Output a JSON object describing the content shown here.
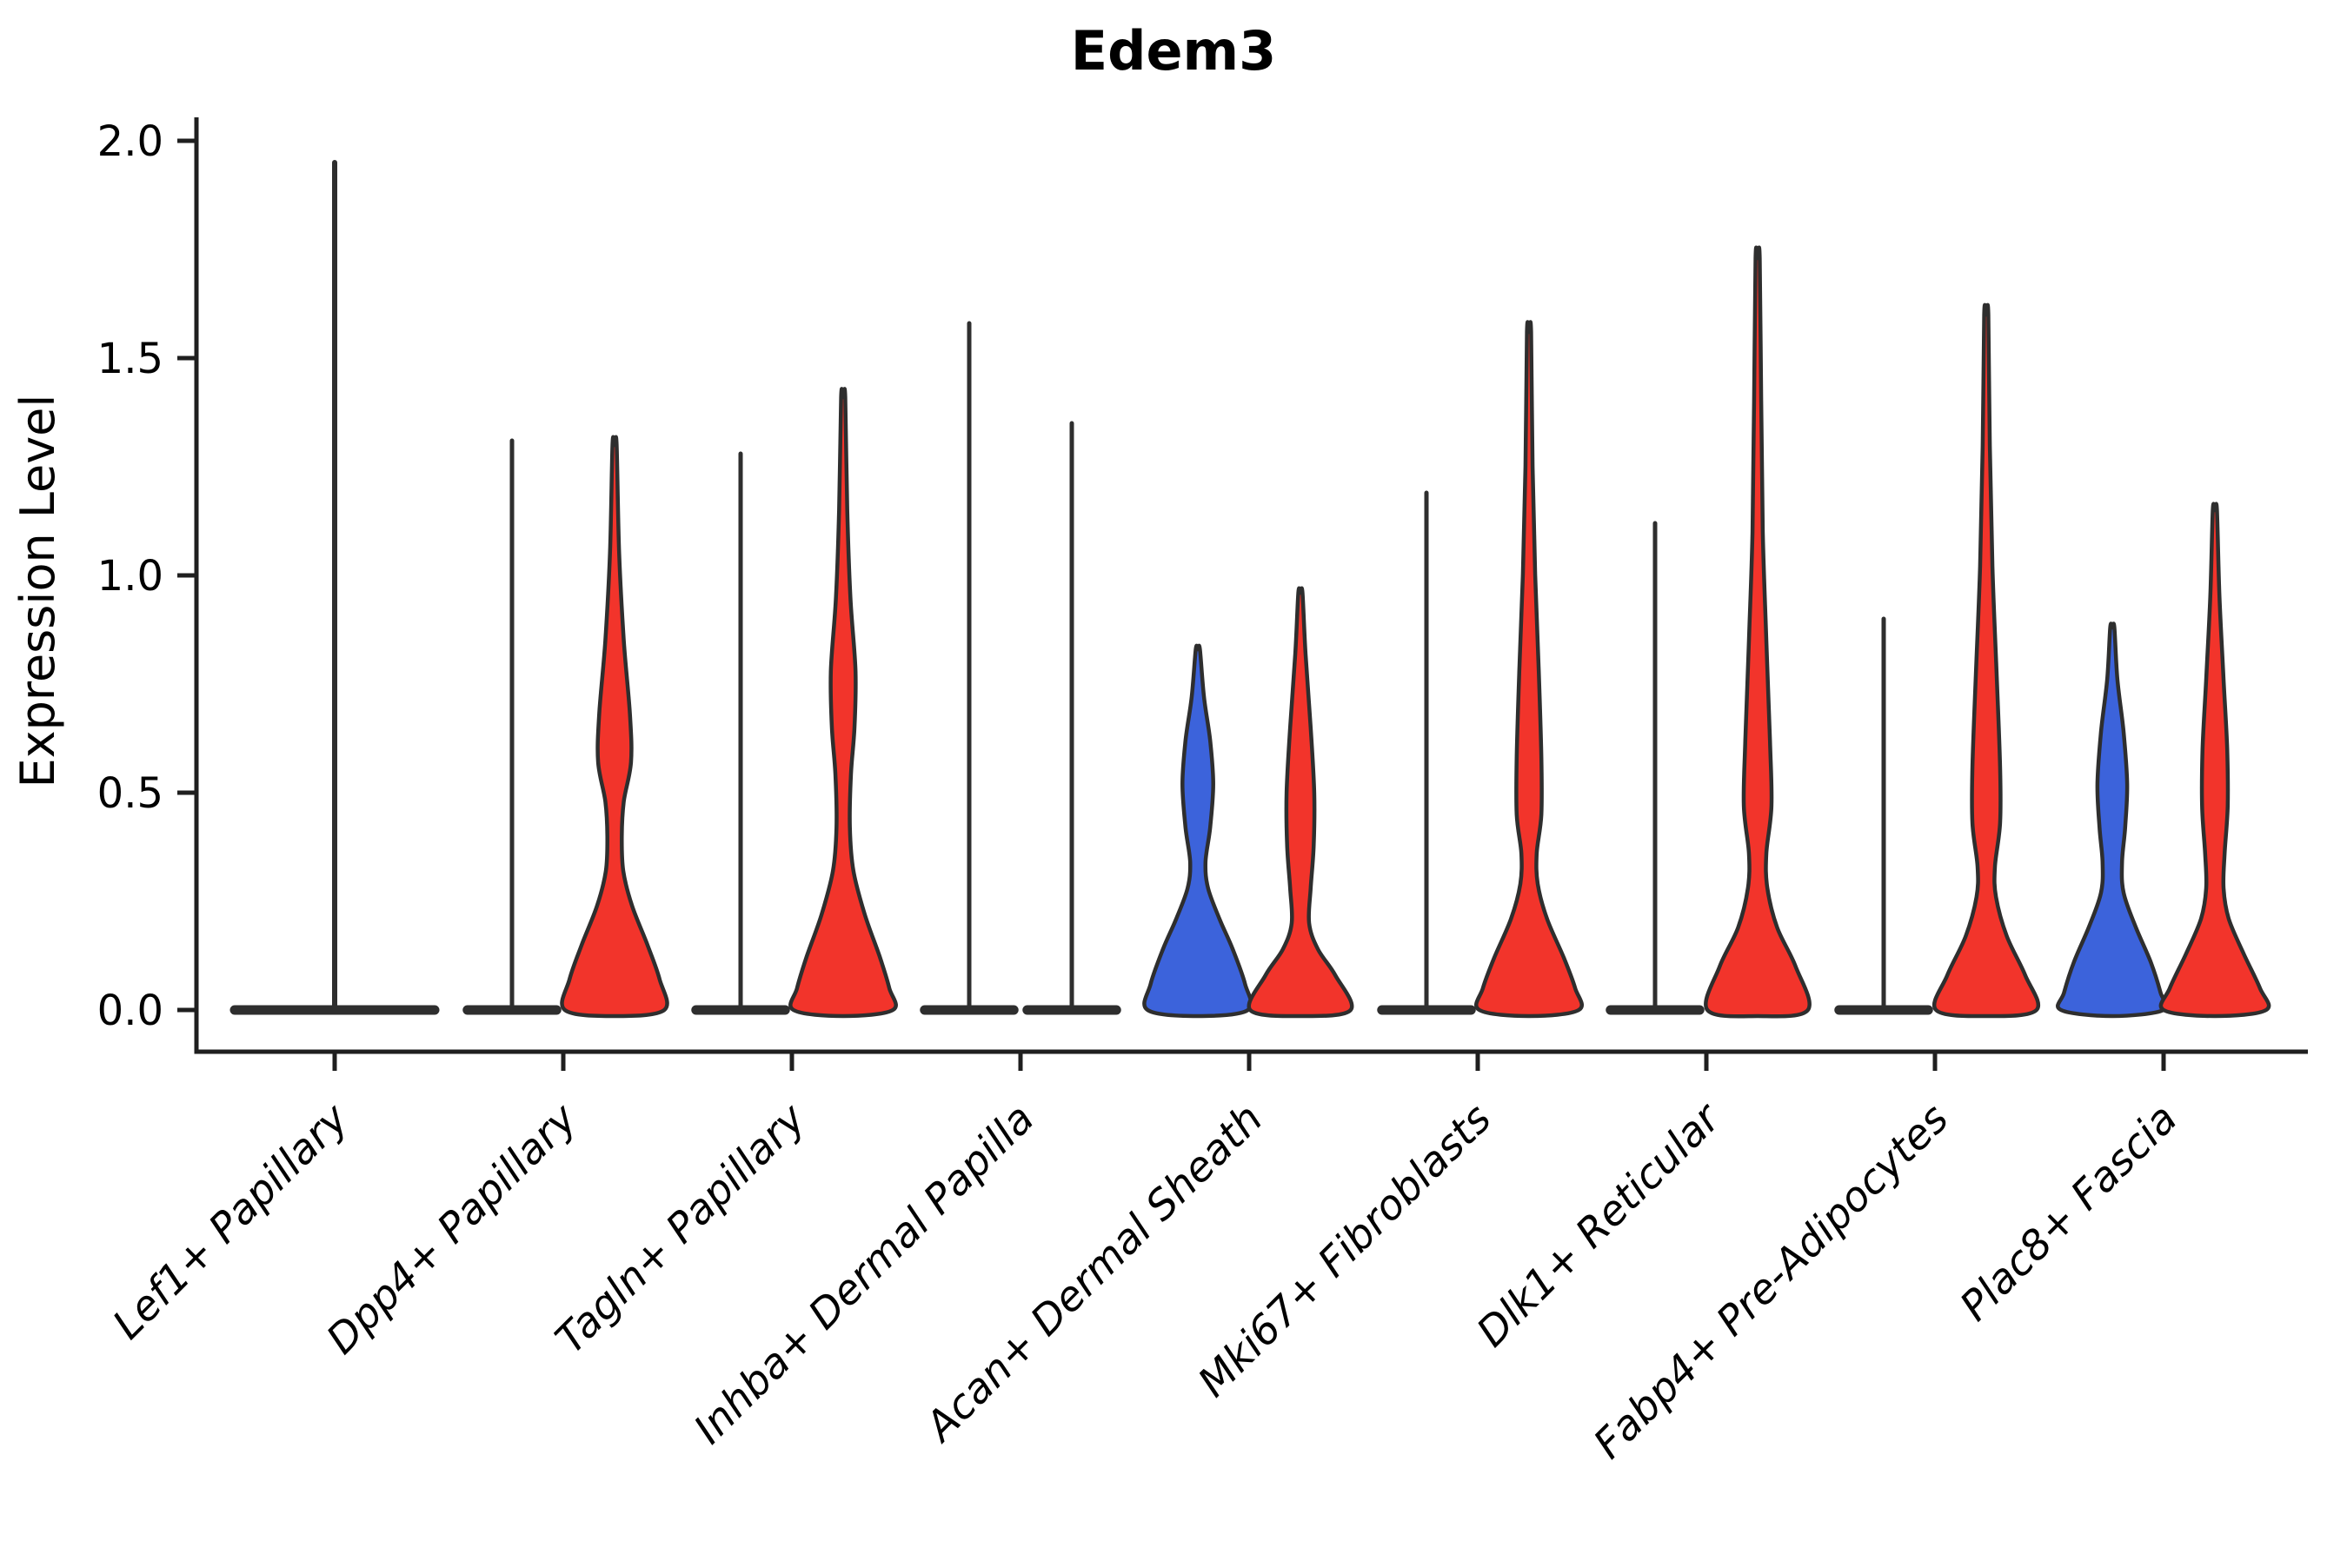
{
  "title": "Edem3",
  "ylabel": "Expression Level",
  "colors": {
    "red": "#F2342B",
    "blue": "#3C63DB",
    "outline": "#2E2E2E",
    "axis": "#1F1F1F",
    "text": "#000000",
    "none": "#FFFFFF"
  },
  "chart_data": {
    "type": "violin",
    "title": "Edem3",
    "ylabel": "Expression Level",
    "ylim": [
      0.0,
      2.0
    ],
    "yticks": [
      0.0,
      0.5,
      1.0,
      1.5,
      2.0
    ],
    "grid": false,
    "legend": false,
    "categories": [
      "Lef1+ Papillary",
      "Dpp4+ Papillary",
      "Tagln+ Papillary",
      "Inhba+ Dermal Papilla",
      "Acan+ Dermal Sheath",
      "Mki67+ Fibroblasts",
      "Dlk1+ Reticular",
      "Fabp4+ Pre-Adipocytes",
      "Plac8+ Fascia"
    ],
    "groups": [
      {
        "category": "Lef1+ Papillary",
        "violins": [
          {
            "position": "center",
            "color": "none",
            "shape": "line",
            "span": "full",
            "max": 1.95,
            "base_width": 1.0
          }
        ]
      },
      {
        "category": "Dpp4+ Papillary",
        "violins": [
          {
            "position": "left",
            "color": "none",
            "shape": "line",
            "span": "half",
            "max": 1.31,
            "base_width": 0.97
          },
          {
            "position": "right",
            "color": "red",
            "shape": "density",
            "span": "half",
            "max": 1.3,
            "profile": [
              [
                1.3,
                0.04
              ],
              [
                1.05,
                0.09
              ],
              [
                0.85,
                0.18
              ],
              [
                0.68,
                0.3
              ],
              [
                0.57,
                0.32
              ],
              [
                0.48,
                0.18
              ],
              [
                0.4,
                0.14
              ],
              [
                0.32,
                0.17
              ],
              [
                0.24,
                0.34
              ],
              [
                0.15,
                0.64
              ],
              [
                0.07,
                0.88
              ],
              [
                0.0,
                0.97
              ]
            ]
          }
        ]
      },
      {
        "category": "Tagln+ Papillary",
        "violins": [
          {
            "position": "left",
            "color": "none",
            "shape": "line",
            "span": "half",
            "max": 1.28,
            "base_width": 0.97
          },
          {
            "position": "right",
            "color": "red",
            "shape": "density",
            "span": "half",
            "max": 1.41,
            "profile": [
              [
                1.41,
                0.04
              ],
              [
                1.15,
                0.08
              ],
              [
                0.95,
                0.14
              ],
              [
                0.78,
                0.24
              ],
              [
                0.65,
                0.22
              ],
              [
                0.54,
                0.15
              ],
              [
                0.42,
                0.13
              ],
              [
                0.32,
                0.2
              ],
              [
                0.22,
                0.42
              ],
              [
                0.12,
                0.72
              ],
              [
                0.05,
                0.9
              ],
              [
                0.0,
                0.97
              ]
            ]
          }
        ]
      },
      {
        "category": "Inhba+ Dermal Papilla",
        "violins": [
          {
            "position": "left",
            "color": "none",
            "shape": "line",
            "span": "half",
            "max": 1.58,
            "base_width": 0.97
          },
          {
            "position": "right",
            "color": "none",
            "shape": "line",
            "span": "half",
            "max": 1.35,
            "base_width": 0.97
          }
        ]
      },
      {
        "category": "Acan+ Dermal Sheath",
        "violins": [
          {
            "position": "left",
            "color": "blue",
            "shape": "density",
            "span": "half",
            "max": 0.83,
            "profile": [
              [
                0.83,
                0.04
              ],
              [
                0.72,
                0.12
              ],
              [
                0.62,
                0.24
              ],
              [
                0.52,
                0.3
              ],
              [
                0.42,
                0.24
              ],
              [
                0.34,
                0.15
              ],
              [
                0.28,
                0.2
              ],
              [
                0.21,
                0.42
              ],
              [
                0.14,
                0.68
              ],
              [
                0.06,
                0.92
              ],
              [
                0.0,
                0.98
              ]
            ]
          },
          {
            "position": "right",
            "color": "red",
            "shape": "density",
            "span": "half",
            "max": 0.96,
            "profile": [
              [
                0.96,
                0.04
              ],
              [
                0.82,
                0.1
              ],
              [
                0.65,
                0.2
              ],
              [
                0.5,
                0.27
              ],
              [
                0.38,
                0.26
              ],
              [
                0.28,
                0.2
              ],
              [
                0.2,
                0.17
              ],
              [
                0.14,
                0.34
              ],
              [
                0.08,
                0.68
              ],
              [
                0.0,
                0.98
              ]
            ]
          }
        ]
      },
      {
        "category": "Mki67+ Fibroblasts",
        "violins": [
          {
            "position": "left",
            "color": "none",
            "shape": "line",
            "span": "half",
            "max": 1.19,
            "base_width": 0.97
          },
          {
            "position": "right",
            "color": "red",
            "shape": "density",
            "span": "half",
            "max": 1.56,
            "profile": [
              [
                1.56,
                0.04
              ],
              [
                1.25,
                0.07
              ],
              [
                1.0,
                0.12
              ],
              [
                0.78,
                0.19
              ],
              [
                0.58,
                0.24
              ],
              [
                0.45,
                0.24
              ],
              [
                0.36,
                0.15
              ],
              [
                0.29,
                0.17
              ],
              [
                0.21,
                0.35
              ],
              [
                0.12,
                0.68
              ],
              [
                0.05,
                0.9
              ],
              [
                0.0,
                0.97
              ]
            ]
          }
        ]
      },
      {
        "category": "Dlk1+ Reticular",
        "violins": [
          {
            "position": "left",
            "color": "none",
            "shape": "line",
            "span": "half",
            "max": 1.12,
            "base_width": 0.97
          },
          {
            "position": "right",
            "color": "red",
            "shape": "density",
            "span": "half",
            "max": 1.73,
            "profile": [
              [
                1.73,
                0.04
              ],
              [
                1.4,
                0.07
              ],
              [
                1.1,
                0.1
              ],
              [
                0.85,
                0.17
              ],
              [
                0.62,
                0.24
              ],
              [
                0.47,
                0.27
              ],
              [
                0.36,
                0.17
              ],
              [
                0.28,
                0.19
              ],
              [
                0.19,
                0.38
              ],
              [
                0.1,
                0.74
              ],
              [
                0.0,
                0.98
              ]
            ]
          }
        ]
      },
      {
        "category": "Fabp4+ Pre-Adipocytes",
        "violins": [
          {
            "position": "left",
            "color": "none",
            "shape": "line",
            "span": "half",
            "max": 0.9,
            "base_width": 0.97
          },
          {
            "position": "right",
            "color": "red",
            "shape": "density",
            "span": "half",
            "max": 1.6,
            "profile": [
              [
                1.6,
                0.04
              ],
              [
                1.3,
                0.07
              ],
              [
                1.02,
                0.12
              ],
              [
                0.78,
                0.2
              ],
              [
                0.56,
                0.27
              ],
              [
                0.43,
                0.27
              ],
              [
                0.33,
                0.17
              ],
              [
                0.26,
                0.19
              ],
              [
                0.17,
                0.4
              ],
              [
                0.08,
                0.76
              ],
              [
                0.0,
                0.98
              ]
            ]
          }
        ]
      },
      {
        "category": "Plac8+ Fascia",
        "violins": [
          {
            "position": "left",
            "color": "blue",
            "shape": "density",
            "span": "half",
            "max": 0.88,
            "profile": [
              [
                0.88,
                0.04
              ],
              [
                0.76,
                0.1
              ],
              [
                0.64,
                0.22
              ],
              [
                0.52,
                0.29
              ],
              [
                0.42,
                0.25
              ],
              [
                0.34,
                0.19
              ],
              [
                0.27,
                0.22
              ],
              [
                0.19,
                0.46
              ],
              [
                0.11,
                0.75
              ],
              [
                0.04,
                0.94
              ],
              [
                0.0,
                1.0
              ]
            ]
          },
          {
            "position": "right",
            "color": "red",
            "shape": "density",
            "span": "half",
            "max": 1.15,
            "profile": [
              [
                1.15,
                0.04
              ],
              [
                0.95,
                0.09
              ],
              [
                0.76,
                0.17
              ],
              [
                0.6,
                0.24
              ],
              [
                0.47,
                0.25
              ],
              [
                0.36,
                0.19
              ],
              [
                0.28,
                0.17
              ],
              [
                0.21,
                0.27
              ],
              [
                0.13,
                0.56
              ],
              [
                0.05,
                0.88
              ],
              [
                0.0,
                1.0
              ]
            ]
          }
        ]
      }
    ]
  }
}
